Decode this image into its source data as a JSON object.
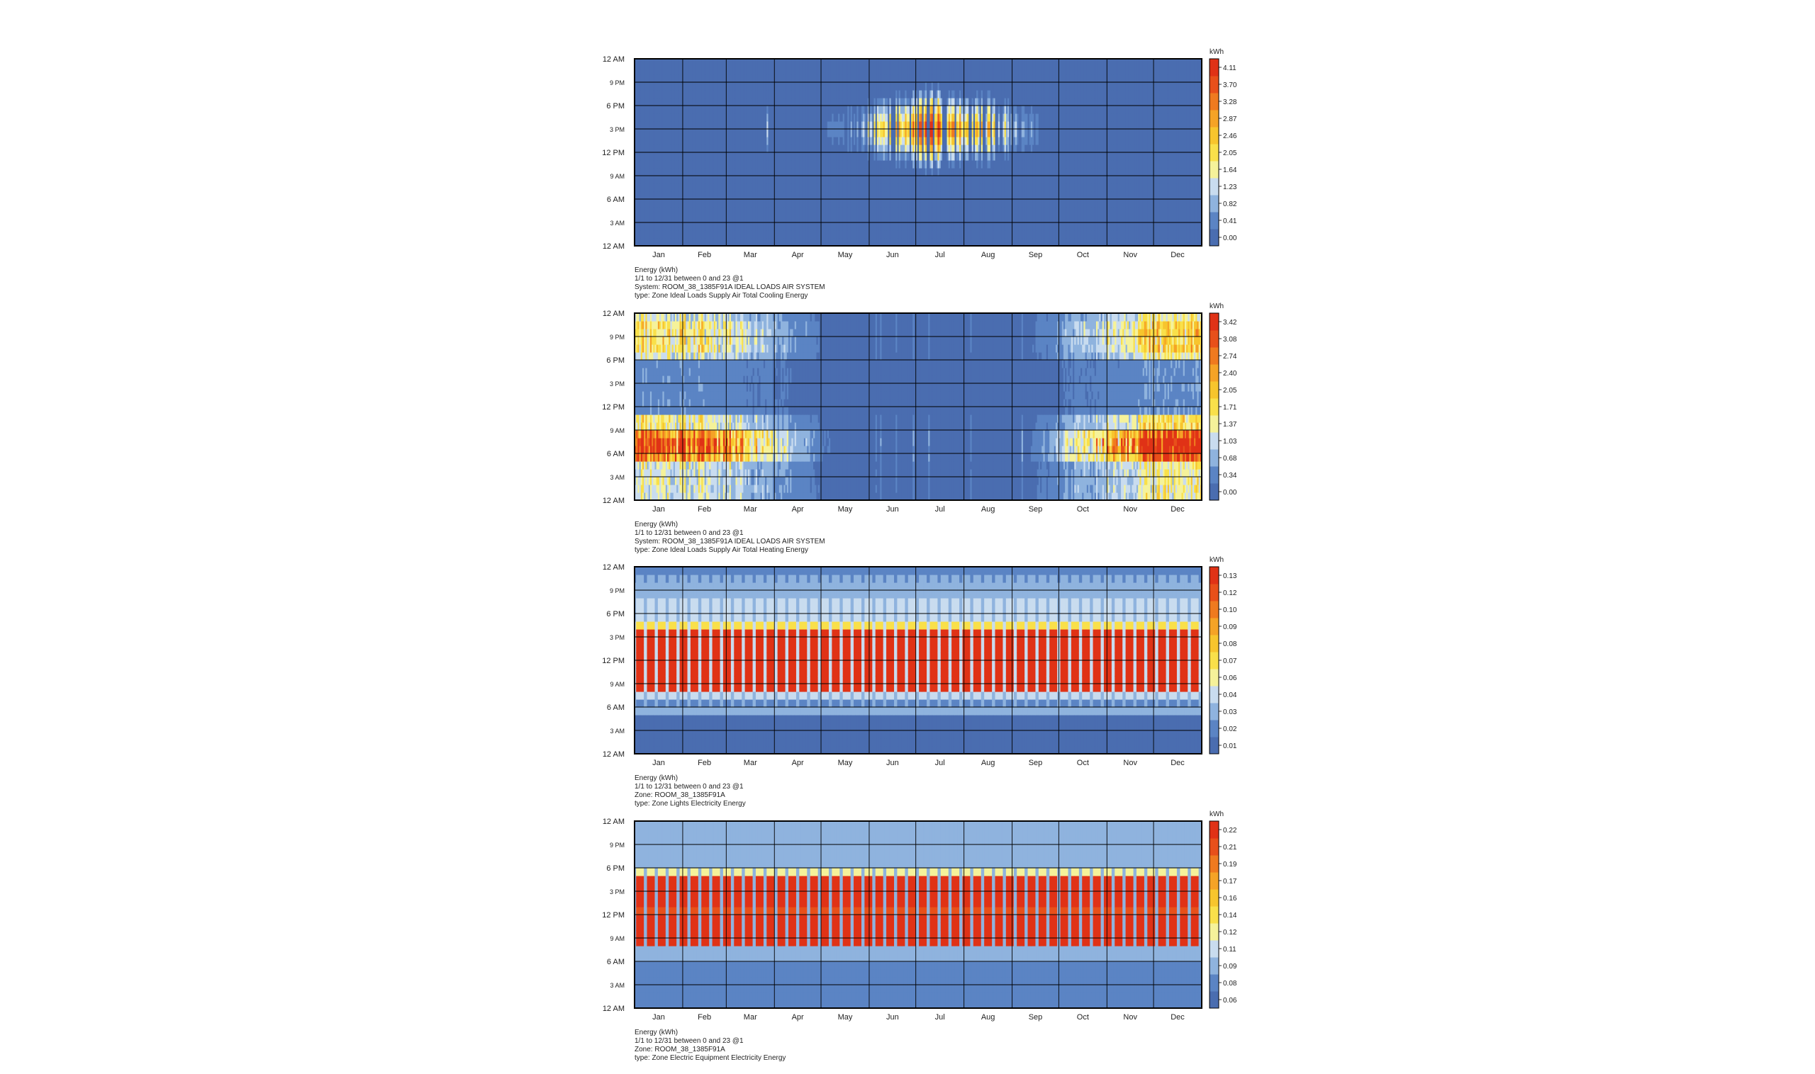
{
  "chart_data": [
    {
      "type": "heatmap",
      "unit": "kWh",
      "caption": [
        "Energy (kWh)",
        "1/1 to 12/31 between 0 and 23 @1",
        "System: ROOM_38_1385F91A IDEAL LOADS AIR SYSTEM",
        "type: Zone Ideal Loads Supply Air Total Cooling Energy"
      ],
      "x_ticks": [
        "Jan",
        "Feb",
        "Mar",
        "Apr",
        "May",
        "Jun",
        "Jul",
        "Aug",
        "Sep",
        "Oct",
        "Nov",
        "Dec"
      ],
      "y_ticks": [
        "12 AM",
        "3 AM",
        "6 AM",
        "9 AM",
        "12 PM",
        "3 PM",
        "6 PM",
        "9 PM",
        "12 AM"
      ],
      "legend_values": [
        "0.00",
        "0.41",
        "0.82",
        "1.23",
        "1.64",
        "2.05",
        "2.46",
        "2.87",
        "3.28",
        "3.70",
        "4.11"
      ],
      "pattern": "cooling",
      "series_range": [
        0.0,
        4.11
      ]
    },
    {
      "type": "heatmap",
      "unit": "kWh",
      "caption": [
        "Energy (kWh)",
        "1/1 to 12/31 between 0 and 23 @1",
        "System: ROOM_38_1385F91A IDEAL LOADS AIR SYSTEM",
        "type: Zone Ideal Loads Supply Air Total Heating Energy"
      ],
      "x_ticks": [
        "Jan",
        "Feb",
        "Mar",
        "Apr",
        "May",
        "Jun",
        "Jul",
        "Aug",
        "Sep",
        "Oct",
        "Nov",
        "Dec"
      ],
      "y_ticks": [
        "12 AM",
        "3 AM",
        "6 AM",
        "9 AM",
        "12 PM",
        "3 PM",
        "6 PM",
        "9 PM",
        "12 AM"
      ],
      "legend_values": [
        "0.00",
        "0.34",
        "0.68",
        "1.03",
        "1.37",
        "1.71",
        "2.05",
        "2.40",
        "2.74",
        "3.08",
        "3.42"
      ],
      "pattern": "heating",
      "series_range": [
        0.0,
        3.42
      ]
    },
    {
      "type": "heatmap",
      "unit": "kWh",
      "caption": [
        "Energy (kWh)",
        "1/1 to 12/31 between 0 and 23 @1",
        "Zone: ROOM_38_1385F91A",
        "type: Zone Lights Electricity Energy"
      ],
      "x_ticks": [
        "Jan",
        "Feb",
        "Mar",
        "Apr",
        "May",
        "Jun",
        "Jul",
        "Aug",
        "Sep",
        "Oct",
        "Nov",
        "Dec"
      ],
      "y_ticks": [
        "12 AM",
        "3 AM",
        "6 AM",
        "9 AM",
        "12 PM",
        "3 PM",
        "6 PM",
        "9 PM",
        "12 AM"
      ],
      "legend_values": [
        "0.01",
        "0.02",
        "0.03",
        "0.04",
        "0.06",
        "0.07",
        "0.08",
        "0.09",
        "0.10",
        "0.12",
        "0.13"
      ],
      "pattern": "lights",
      "series_range": [
        0.01,
        0.13
      ]
    },
    {
      "type": "heatmap",
      "unit": "kWh",
      "caption": [
        "Energy (kWh)",
        "1/1 to 12/31 between 0 and 23 @1",
        "Zone: ROOM_38_1385F91A",
        "type: Zone Electric Equipment Electricity Energy"
      ],
      "x_ticks": [
        "Jan",
        "Feb",
        "Mar",
        "Apr",
        "May",
        "Jun",
        "Jul",
        "Aug",
        "Sep",
        "Oct",
        "Nov",
        "Dec"
      ],
      "y_ticks": [
        "12 AM",
        "3 AM",
        "6 AM",
        "9 AM",
        "12 PM",
        "3 PM",
        "6 PM",
        "9 PM",
        "12 AM"
      ],
      "legend_values": [
        "0.06",
        "0.08",
        "0.09",
        "0.11",
        "0.12",
        "0.14",
        "0.16",
        "0.17",
        "0.19",
        "0.21",
        "0.22"
      ],
      "pattern": "equipment",
      "series_range": [
        0.06,
        0.22
      ]
    }
  ],
  "palette": [
    "#4a6db0",
    "#5b84c4",
    "#8fb3de",
    "#c9dcef",
    "#f5f29a",
    "#f9e04a",
    "#f7c52d",
    "#f5a326",
    "#ef7a1f",
    "#e8501a",
    "#e03216"
  ],
  "border_color": "#000000"
}
